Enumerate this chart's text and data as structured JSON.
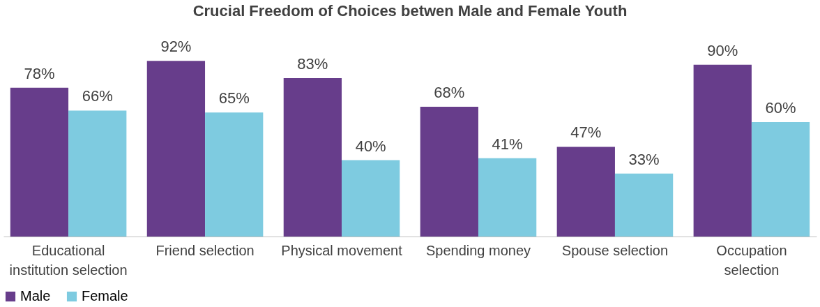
{
  "chart_data": {
    "type": "bar",
    "title": "Crucial Freedom of Choices betwen Male and Female Youth",
    "categories": [
      "Educational\ninstitution selection",
      "Friend selection",
      "Physical movement",
      "Spending money",
      "Spouse selection",
      "Occupation\nselection"
    ],
    "series": [
      {
        "name": "Male",
        "color": "#673d8b",
        "values": [
          78,
          92,
          83,
          68,
          47,
          90
        ],
        "value_labels": [
          "78%",
          "92%",
          "83%",
          "68%",
          "47%",
          "90%"
        ]
      },
      {
        "name": "Female",
        "color": "#7ecbe0",
        "values": [
          66,
          65,
          40,
          41,
          33,
          60
        ],
        "value_labels": [
          "66%",
          "65%",
          "40%",
          "41%",
          "33%",
          "60%"
        ]
      }
    ],
    "legend": "bottom",
    "grid": false
  }
}
